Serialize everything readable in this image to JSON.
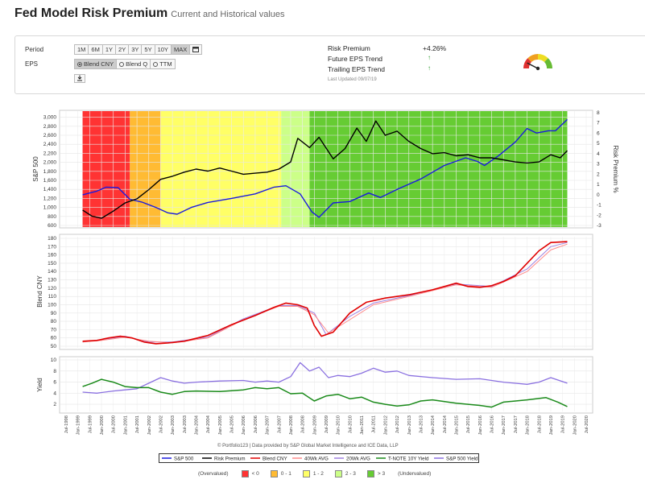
{
  "header": {
    "title": "Fed Model Risk Premium",
    "subtitle": "Current and Historical values"
  },
  "controls": {
    "period_label": "Period",
    "periods": [
      "1M",
      "6M",
      "1Y",
      "2Y",
      "3Y",
      "5Y",
      "10Y",
      "MAX"
    ],
    "active_period": "MAX",
    "eps_label": "EPS",
    "eps_options": [
      "Blend CNY",
      "Blend Q",
      "TTM"
    ],
    "eps_selected": "Blend CNY",
    "calendar_icon": "calendar-icon",
    "download_icon": "download-icon"
  },
  "summary": {
    "risk_premium_label": "Risk Premium",
    "risk_premium_value": "+4.26%",
    "future_eps_label": "Future EPS Trend",
    "future_eps_trend": "up",
    "trailing_eps_label": "Trailing EPS Trend",
    "trailing_eps_trend": "up",
    "last_updated": "Last Updated 09/07/19",
    "gauge_level": 0.15
  },
  "chart_data": [
    {
      "type": "line",
      "ylabel": "S&P 500",
      "ylabel_right": "Risk Premium %",
      "ylim": [
        600,
        3100
      ],
      "yticks": [
        "600",
        "800",
        "1,000",
        "1,200",
        "1,400",
        "1,600",
        "1,800",
        "2,000",
        "2,200",
        "2,400",
        "2,600",
        "2,800",
        "3,000"
      ],
      "ylim_right": [
        -3,
        8
      ],
      "yticks_right": [
        "-3",
        "-2",
        "-1",
        "0",
        "1",
        "2",
        "3",
        "4",
        "5",
        "6",
        "7",
        "8"
      ],
      "background_zones": [
        {
          "from": 1999.2,
          "to": 2001.2,
          "zone": "< 0"
        },
        {
          "from": 2001.2,
          "to": 2002.5,
          "zone": "0 - 1"
        },
        {
          "from": 2002.5,
          "to": 2007.6,
          "zone": "1 - 2"
        },
        {
          "from": 2007.6,
          "to": 2008.8,
          "zone": "2 - 3"
        },
        {
          "from": 2008.8,
          "to": 2019.7,
          "zone": "> 3"
        }
      ],
      "series": [
        {
          "name": "S&P 500",
          "color": "#1a1adf",
          "x": [
            1999.2,
            1999.8,
            2000.2,
            2000.7,
            2001.2,
            2001.7,
            2002.3,
            2002.8,
            2003.2,
            2003.8,
            2004.5,
            2005.5,
            2006.5,
            2007.3,
            2007.8,
            2008.4,
            2008.9,
            2009.2,
            2009.8,
            2010.5,
            2011.3,
            2011.8,
            2012.5,
            2013.5,
            2014.5,
            2015.4,
            2015.9,
            2016.2,
            2016.8,
            2017.5,
            2018.0,
            2018.4,
            2018.9,
            2019.2,
            2019.7
          ],
          "values": [
            1280,
            1360,
            1450,
            1440,
            1180,
            1120,
            1000,
            880,
            850,
            1000,
            1110,
            1200,
            1300,
            1450,
            1480,
            1300,
            900,
            780,
            1100,
            1130,
            1320,
            1220,
            1400,
            1630,
            1930,
            2100,
            2020,
            1930,
            2150,
            2450,
            2750,
            2650,
            2700,
            2700,
            2950
          ]
        },
        {
          "name": "Risk Premium",
          "color": "#000000",
          "x": [
            1999.2,
            1999.6,
            2000.0,
            2000.5,
            2001.0,
            2001.5,
            2002.0,
            2002.5,
            2003.0,
            2003.5,
            2004.0,
            2004.5,
            2005.0,
            2005.5,
            2006.0,
            2006.5,
            2007.0,
            2007.5,
            2008.0,
            2008.3,
            2008.8,
            2009.2,
            2009.8,
            2010.3,
            2010.8,
            2011.2,
            2011.6,
            2012.0,
            2012.5,
            2013.0,
            2013.5,
            2014.0,
            2014.5,
            2015.0,
            2015.5,
            2016.0,
            2016.5,
            2017.0,
            2017.5,
            2018.0,
            2018.5,
            2019.0,
            2019.4,
            2019.7
          ],
          "values": [
            -1.5,
            -2.1,
            -2.3,
            -1.6,
            -0.8,
            -0.4,
            0.5,
            1.5,
            1.8,
            2.2,
            2.5,
            2.3,
            2.6,
            2.3,
            2.0,
            2.1,
            2.2,
            2.5,
            3.2,
            5.5,
            4.6,
            5.6,
            3.5,
            4.5,
            6.5,
            5.2,
            7.2,
            5.8,
            6.2,
            5.2,
            4.5,
            4.0,
            4.1,
            3.8,
            3.9,
            3.6,
            3.6,
            3.4,
            3.2,
            3.1,
            3.2,
            3.9,
            3.6,
            4.3
          ]
        }
      ]
    },
    {
      "type": "line",
      "ylabel": "Blend CNY",
      "ylim": [
        50,
        180
      ],
      "yticks": [
        "50",
        "60",
        "70",
        "80",
        "90",
        "100",
        "110",
        "120",
        "130",
        "140",
        "150",
        "160",
        "170",
        "180"
      ],
      "series": [
        {
          "name": "Blend CNY",
          "color": "#e00000",
          "x": [
            1999.2,
            1999.8,
            2000.3,
            2000.8,
            2001.3,
            2001.8,
            2002.3,
            2002.8,
            2003.5,
            2004.5,
            2005.5,
            2006.5,
            2007.3,
            2007.8,
            2008.3,
            2008.7,
            2009.0,
            2009.3,
            2009.8,
            2010.5,
            2011.2,
            2012.0,
            2013.0,
            2014.0,
            2014.5,
            2015.0,
            2015.5,
            2016.0,
            2016.5,
            2017.0,
            2017.5,
            2018.0,
            2018.5,
            2019.0,
            2019.7
          ],
          "values": [
            56,
            57,
            60,
            62,
            60,
            55,
            53,
            54,
            56,
            63,
            76,
            87,
            97,
            102,
            100,
            96,
            75,
            62,
            67,
            90,
            103,
            108,
            112,
            118,
            122,
            126,
            122,
            121,
            123,
            128,
            135,
            150,
            165,
            175,
            176
          ]
        },
        {
          "name": "40Wk AVG",
          "color": "#ff8a8a",
          "x": [
            1999.2,
            2000.0,
            2001.0,
            2002.0,
            2003.0,
            2004.5,
            2006.0,
            2007.5,
            2008.3,
            2009.0,
            2009.6,
            2010.5,
            2011.5,
            2013.0,
            2015.0,
            2016.5,
            2018.0,
            2019.0,
            2019.7
          ],
          "values": [
            55,
            57,
            61,
            56,
            54,
            60,
            82,
            98,
            98,
            88,
            66,
            82,
            100,
            110,
            124,
            121,
            140,
            166,
            173
          ]
        },
        {
          "name": "20Wk AVG",
          "color": "#a080e0",
          "x": [
            1999.2,
            2000.0,
            2001.0,
            2002.0,
            2003.0,
            2004.5,
            2006.0,
            2007.5,
            2008.3,
            2009.0,
            2009.5,
            2010.5,
            2011.5,
            2013.0,
            2015.0,
            2016.5,
            2018.0,
            2019.0,
            2019.7
          ],
          "values": [
            55,
            58,
            62,
            55,
            55,
            61,
            83,
            99,
            99,
            90,
            64,
            86,
            102,
            111,
            125,
            122,
            143,
            170,
            175
          ]
        }
      ]
    },
    {
      "type": "line",
      "ylabel": "Yield",
      "ylim": [
        1,
        10
      ],
      "yticks": [
        "2",
        "4",
        "6",
        "8",
        "10"
      ],
      "series": [
        {
          "name": "T-NOTE 10Y Yield",
          "color": "#1a8a1a",
          "x": [
            1999.2,
            1999.6,
            2000.0,
            2000.5,
            2001.0,
            2001.5,
            2002.0,
            2002.5,
            2003.0,
            2003.5,
            2004.0,
            2005.0,
            2006.0,
            2006.5,
            2007.0,
            2007.5,
            2008.0,
            2008.5,
            2009.0,
            2009.5,
            2010.0,
            2010.5,
            2011.0,
            2011.5,
            2012.0,
            2012.5,
            2013.0,
            2013.5,
            2014.0,
            2015.0,
            2016.0,
            2016.5,
            2017.0,
            2018.0,
            2018.8,
            2019.3,
            2019.7
          ],
          "values": [
            5.2,
            5.8,
            6.5,
            6.0,
            5.2,
            5.0,
            5.0,
            4.2,
            3.8,
            4.3,
            4.4,
            4.3,
            4.6,
            5.0,
            4.8,
            5.0,
            3.9,
            4.0,
            2.6,
            3.5,
            3.8,
            3.0,
            3.3,
            2.4,
            2.0,
            1.7,
            1.9,
            2.6,
            2.8,
            2.2,
            1.8,
            1.5,
            2.4,
            2.8,
            3.2,
            2.4,
            1.6
          ]
        },
        {
          "name": "S&P 500 Yield",
          "color": "#8a70e0",
          "x": [
            1999.2,
            1999.8,
            2000.5,
            2001.0,
            2001.5,
            2002.0,
            2002.5,
            2003.0,
            2003.5,
            2004.0,
            2005.0,
            2006.0,
            2006.5,
            2007.0,
            2007.5,
            2008.0,
            2008.4,
            2008.8,
            2009.2,
            2009.6,
            2010.0,
            2010.5,
            2011.0,
            2011.5,
            2012.0,
            2012.5,
            2013.0,
            2014.0,
            2015.0,
            2016.0,
            2017.0,
            2018.0,
            2018.5,
            2019.0,
            2019.7
          ],
          "values": [
            4.2,
            4.0,
            4.4,
            4.6,
            4.8,
            5.8,
            6.8,
            6.2,
            5.8,
            6.0,
            6.2,
            6.3,
            6.0,
            6.2,
            6.0,
            7.0,
            9.5,
            8.0,
            8.7,
            6.8,
            7.2,
            7.0,
            7.6,
            8.5,
            7.8,
            8.0,
            7.2,
            6.8,
            6.5,
            6.6,
            6.0,
            5.6,
            6.0,
            6.8,
            5.8
          ]
        }
      ]
    }
  ],
  "x_axis": {
    "ticks": [
      "Jul-1998",
      "Jan-1999",
      "Jul-1999",
      "Jan-2000",
      "Jul-2000",
      "Jan-2001",
      "Jul-2001",
      "Jan-2002",
      "Jul-2002",
      "Jan-2003",
      "Jul-2003",
      "Jan-2004",
      "Jul-2004",
      "Jan-2005",
      "Jul-2005",
      "Jan-2006",
      "Jul-2006",
      "Jan-2007",
      "Jul-2007",
      "Jan-2008",
      "Jul-2008",
      "Jan-2009",
      "Jul-2009",
      "Jan-2010",
      "Jul-2010",
      "Jan-2011",
      "Jul-2011",
      "Jan-2012",
      "Jul-2012",
      "Jan-2013",
      "Jul-2013",
      "Jan-2014",
      "Jul-2014",
      "Jan-2015",
      "Jul-2015",
      "Jan-2016",
      "Jul-2016",
      "Jan-2017",
      "Jul-2017",
      "Jan-2018",
      "Jul-2018",
      "Jan-2019",
      "Jul-2019",
      "Jan-2020",
      "Jul-2020"
    ]
  },
  "footer": {
    "credit": "© Portfolio123 | Data provided by S&P Global Market Intelligence and ICE Data, LLP",
    "legend": [
      "S&P 500",
      "Risk Premium",
      "Blend CNY",
      "40Wk AVG",
      "20Wk AVG",
      "T-NOTE 10Y Yield",
      "S&P 500 Yield"
    ],
    "zones_left": "(Overvalued)",
    "zones_right": "(Undervalued)",
    "zones": [
      {
        "label": "< 0",
        "color": "#ff3333"
      },
      {
        "label": "0 - 1",
        "color": "#ffbb33"
      },
      {
        "label": "1 - 2",
        "color": "#ffff66"
      },
      {
        "label": "2 - 3",
        "color": "#ccff88"
      },
      {
        "label": "> 3",
        "color": "#66cc33"
      }
    ]
  },
  "colors": {
    "zone_neg": "#ff3333",
    "zone_0_1": "#ffbb33",
    "zone_1_2": "#ffff66",
    "zone_2_3": "#ccff88",
    "zone_gt3": "#66cc33"
  }
}
